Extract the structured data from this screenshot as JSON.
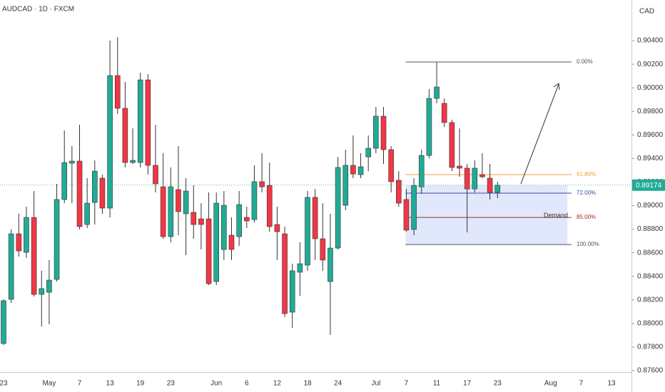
{
  "chart_data": {
    "type": "candlestick",
    "title": "AUDCAD · 1D · FXCM",
    "currency": "CAD",
    "categories": [
      "23",
      null,
      null,
      null,
      null,
      null,
      "May",
      null,
      null,
      null,
      "7",
      null,
      null,
      null,
      "13",
      null,
      null,
      null,
      "19",
      null,
      null,
      null,
      "23",
      null,
      null,
      null,
      null,
      null,
      "Jun",
      null,
      null,
      null,
      "6",
      null,
      null,
      null,
      "12",
      null,
      null,
      null,
      "18",
      null,
      null,
      null,
      "24",
      null,
      null,
      null,
      null,
      "Jul",
      null,
      null,
      null,
      "7",
      null,
      null,
      null,
      "11",
      null,
      null,
      null,
      "17",
      null,
      null,
      null,
      "23",
      null,
      null,
      null,
      null,
      null,
      null,
      "Aug",
      null,
      null,
      null,
      "7",
      null,
      null,
      null,
      "13"
    ],
    "open": [
      0.8783,
      0.88205,
      0.88761,
      0.88604,
      0.889,
      0.88247,
      0.88265,
      0.88374,
      0.89052,
      0.8936,
      0.89378,
      0.8884,
      0.89027,
      0.89233,
      0.88979,
      0.90104,
      0.89826,
      0.89366,
      0.89366,
      0.90067,
      0.89342,
      0.8916,
      0.88737,
      0.89136,
      0.88931,
      0.88943,
      0.88888,
      0.88888,
      0.88356,
      0.88628,
      0.88749,
      0.88737,
      0.889,
      0.88882,
      0.89203,
      0.89172,
      0.8884,
      0.88761,
      0.88096,
      0.88435,
      0.88495,
      0.8907,
      0.88719,
      0.88356,
      0.8864,
      0.89003,
      0.89342,
      0.89263,
      0.89414,
      0.89487,
      0.89759,
      0.89475,
      0.89215,
      0.89052,
      0.88798,
      0.8916,
      0.89426,
      0.8991,
      0.89868,
      0.89705,
      0.89336,
      0.89318,
      0.89142,
      0.89263,
      0.89233,
      0.89112,
      null,
      null,
      null,
      null,
      null,
      null,
      null,
      null,
      null,
      null,
      null,
      null,
      null,
      null,
      null
    ],
    "high": [
      0.88205,
      0.88798,
      0.88931,
      0.88991,
      0.89124,
      0.88447,
      0.88538,
      0.89185,
      0.89638,
      0.89505,
      0.89686,
      0.89233,
      0.89384,
      0.89263,
      0.904,
      0.9043,
      0.90049,
      0.89656,
      0.90128,
      0.90116,
      0.89686,
      0.89445,
      0.89324,
      0.89505,
      0.89233,
      0.89172,
      0.89021,
      0.89112,
      0.89112,
      0.89124,
      0.889,
      0.89124,
      0.88991,
      0.89342,
      0.89445,
      0.89366,
      0.88991,
      0.88822,
      0.88507,
      0.88689,
      0.89124,
      0.89142,
      0.89021,
      0.88931,
      0.89414,
      0.89475,
      0.89596,
      0.89445,
      0.89596,
      0.89838,
      0.89838,
      0.89505,
      0.89293,
      0.89142,
      0.89233,
      0.89475,
      0.89989,
      0.90219,
      0.8991,
      0.89729,
      0.89656,
      0.89354,
      0.89384,
      0.89445,
      0.89354,
      0.89203,
      null,
      null,
      null,
      null,
      null,
      null,
      null,
      null,
      null,
      null,
      null,
      null,
      null,
      null,
      null
    ],
    "low": [
      0.87818,
      0.88175,
      0.88568,
      0.88556,
      0.88229,
      0.87975,
      0.87993,
      0.88356,
      0.89021,
      0.89021,
      0.88798,
      0.8881,
      0.8884,
      0.88931,
      0.889,
      0.89777,
      0.89324,
      0.89354,
      0.89324,
      0.89263,
      0.89112,
      0.88719,
      0.88689,
      0.88749,
      0.8858,
      0.88719,
      0.88628,
      0.88326,
      0.88326,
      0.88538,
      0.88538,
      0.88659,
      0.8881,
      0.88858,
      0.89112,
      0.88779,
      0.88538,
      0.88054,
      0.87963,
      0.88235,
      0.88447,
      0.88538,
      0.88447,
      0.87903,
      0.88628,
      0.88961,
      0.89233,
      0.89233,
      0.89293,
      0.89445,
      0.89354,
      0.89112,
      0.88991,
      0.88779,
      0.88749,
      0.891,
      0.89402,
      0.89868,
      0.89668,
      0.89293,
      0.89245,
      0.88773,
      0.89112,
      0.89233,
      0.89052,
      0.89064,
      null,
      null,
      null,
      null,
      null,
      null,
      null,
      null,
      null,
      null,
      null,
      null,
      null,
      null,
      null
    ],
    "close": [
      0.88193,
      0.88761,
      0.88616,
      0.889,
      0.88247,
      0.88296,
      0.88368,
      0.89052,
      0.89366,
      0.89378,
      0.88822,
      0.89021,
      0.89293,
      0.88979,
      0.90104,
      0.89826,
      0.89366,
      0.89384,
      0.90067,
      0.89342,
      0.89185,
      0.88737,
      0.8916,
      0.88949,
      0.89124,
      0.8884,
      0.8884,
      0.88338,
      0.89021,
      0.89003,
      0.88628,
      0.89009,
      0.8887,
      0.89203,
      0.8916,
      0.88822,
      0.88779,
      0.88084,
      0.88447,
      0.88507,
      0.8907,
      0.88719,
      0.88538,
      0.8864,
      0.89324,
      0.89342,
      0.89269,
      0.8933,
      0.89487,
      0.89759,
      0.89475,
      0.89203,
      0.89021,
      0.88792,
      0.89172,
      0.89426,
      0.8991,
      0.90007,
      0.89705,
      0.89324,
      0.89318,
      0.89142,
      0.89318,
      0.89245,
      0.89112,
      0.89174,
      null,
      null,
      null,
      null,
      null,
      null,
      null,
      null,
      null,
      null,
      null,
      null,
      null,
      null,
      null
    ],
    "up_color": "#22ab94",
    "down_color": "#f23645",
    "ylim": [
      0.87588,
      0.90745
    ],
    "yticks": [
      {
        "value": 0.876,
        "label": "0.87600"
      },
      {
        "value": 0.878,
        "label": "0.87800"
      },
      {
        "value": 0.88,
        "label": "0.88000"
      },
      {
        "value": 0.882,
        "label": "0.88200"
      },
      {
        "value": 0.884,
        "label": "0.88400"
      },
      {
        "value": 0.886,
        "label": "0.88600"
      },
      {
        "value": 0.888,
        "label": "0.88800"
      },
      {
        "value": 0.89,
        "label": "0.89000"
      },
      {
        "value": 0.892,
        "label": "0.89200"
      },
      {
        "value": 0.894,
        "label": "0.89400"
      },
      {
        "value": 0.896,
        "label": "0.89600"
      },
      {
        "value": 0.898,
        "label": "0.89800"
      },
      {
        "value": 0.9,
        "label": "0.90000"
      },
      {
        "value": 0.902,
        "label": "0.90200"
      },
      {
        "value": 0.904,
        "label": "0.90400"
      }
    ],
    "last_price": {
      "value": 0.89174,
      "label": "0.89174"
    },
    "fib_levels": [
      {
        "label": "0.00%",
        "value": 0.90219,
        "color": "#555555"
      },
      {
        "label": "61.80%",
        "value": 0.89263,
        "color": "#f29d38"
      },
      {
        "label": "72.00%",
        "value": 0.89106,
        "color": "#3949ab"
      },
      {
        "label": "85.00%",
        "value": 0.889,
        "color": "#a52a2a"
      },
      {
        "label": "100.00%",
        "value": 0.8867,
        "color": "#555555"
      }
    ],
    "zone": {
      "label": "Demand",
      "top": 0.89172,
      "bottom": 0.8867
    }
  }
}
